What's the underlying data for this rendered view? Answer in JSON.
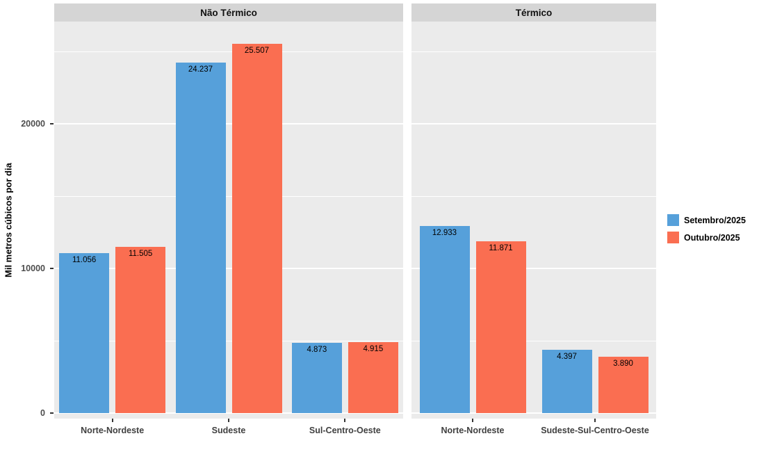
{
  "chart_data": {
    "type": "bar",
    "grouping": "dodged",
    "title": "",
    "xlabel": "",
    "ylabel": "Mil metros cúbicos por dia",
    "ylim": [
      0,
      27000
    ],
    "yticks": [
      0,
      10000,
      20000
    ],
    "ytick_labels": [
      "0",
      "10000",
      "20000"
    ],
    "minor_ticks": [
      5000,
      15000,
      25000
    ],
    "grid": "on",
    "panel_background": "#EBEBEB",
    "strip_background": "#D5D5D5",
    "legend": {
      "position": "right",
      "entries": [
        {
          "name": "Setembro/2025",
          "color": "#56A0DA"
        },
        {
          "name": "Outubro/2025",
          "color": "#FA6E51"
        }
      ]
    },
    "facets": [
      {
        "label": "Não Térmico",
        "categories": [
          "Norte-Nordeste",
          "Sudeste",
          "Sul-Centro-Oeste"
        ],
        "series": [
          {
            "name": "Setembro/2025",
            "values": [
              11056,
              24237,
              4873
            ],
            "labels": [
              "11.056",
              "24.237",
              "4.873"
            ]
          },
          {
            "name": "Outubro/2025",
            "values": [
              11505,
              25507,
              4915
            ],
            "labels": [
              "11.505",
              "25.507",
              "4.915"
            ]
          }
        ]
      },
      {
        "label": "Térmico",
        "categories": [
          "Norte-Nordeste",
          "Sudeste-Sul-Centro-Oeste"
        ],
        "series": [
          {
            "name": "Setembro/2025",
            "values": [
              12933,
              4397
            ],
            "labels": [
              "12.933",
              "4.397"
            ]
          },
          {
            "name": "Outubro/2025",
            "values": [
              11871,
              3890
            ],
            "labels": [
              "11.871",
              "3.890"
            ]
          }
        ]
      }
    ]
  }
}
